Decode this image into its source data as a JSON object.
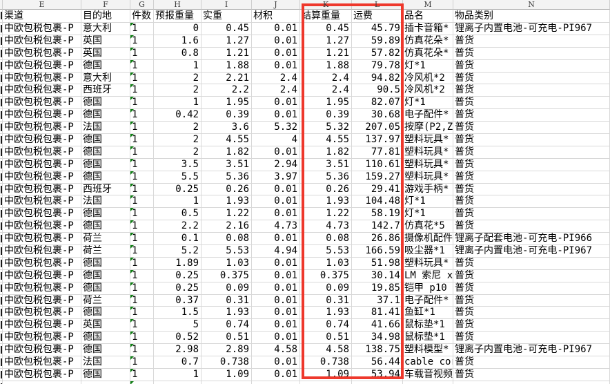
{
  "sheet": {
    "column_letters": [
      "E",
      "F",
      "G",
      "H",
      "I",
      "J",
      "K",
      "L",
      "M",
      "N"
    ],
    "headers": [
      "渠道",
      "目的地",
      "件数",
      "预报重量",
      "实重",
      "材积",
      "结算重量",
      "运费",
      "品名",
      "物品类别"
    ],
    "rows": [
      [
        "中欧包税包裹-P",
        "意大利",
        "1",
        "0",
        "0.45",
        "0.01",
        "0.45",
        "45.79",
        "插卡音箱*",
        "锂离子内置电池-可充电-PI967"
      ],
      [
        "中欧包税包裹-P",
        "英国",
        "1",
        "1.6",
        "1.27",
        "0.01",
        "1.27",
        "59.89",
        "仿真花朵*",
        "普货"
      ],
      [
        "中欧包税包裹-P",
        "英国",
        "1",
        "0.8",
        "1.21",
        "0.01",
        "1.21",
        "57.82",
        "仿真花朵*",
        "普货"
      ],
      [
        "中欧包税包裹-P",
        "德国",
        "1",
        "1",
        "1.88",
        "0.01",
        "1.88",
        "79.78",
        "灯*1",
        "普货"
      ],
      [
        "中欧包税包裹-P",
        "意大利",
        "1",
        "2",
        "2.21",
        "2.4",
        "2.4",
        "94.82",
        "冷风机*2",
        "普货"
      ],
      [
        "中欧包税包裹-P",
        "西班牙",
        "1",
        "2",
        "2.2",
        "2.4",
        "2.4",
        "90.5",
        "冷风机*2",
        "普货"
      ],
      [
        "中欧包税包裹-P",
        "德国",
        "1",
        "1",
        "1.95",
        "0.01",
        "1.95",
        "82.07",
        "灯*1",
        "普货"
      ],
      [
        "中欧包税包裹-P",
        "德国",
        "1",
        "0.42",
        "0.39",
        "0.01",
        "0.39",
        "30.68",
        "电子配件*",
        "普货"
      ],
      [
        "中欧包税包裹-P",
        "法国",
        "1",
        "2",
        "3.6",
        "5.32",
        "5.32",
        "207.05",
        "按摩(P2,Z",
        "普货"
      ],
      [
        "中欧包税包裹-P",
        "德国",
        "1",
        "2",
        "4.55",
        "4",
        "4.55",
        "137.97",
        "塑料玩具*",
        "普货"
      ],
      [
        "中欧包税包裹-P",
        "德国",
        "1",
        "2",
        "1.82",
        "0.01",
        "1.82",
        "77.81",
        "塑料玩具*",
        "普货"
      ],
      [
        "中欧包税包裹-P",
        "德国",
        "1",
        "3.5",
        "3.51",
        "2.94",
        "3.51",
        "110.61",
        "塑料玩具*",
        "普货"
      ],
      [
        "中欧包税包裹-P",
        "德国",
        "1",
        "5.5",
        "5.36",
        "3.97",
        "5.36",
        "159.27",
        "塑料玩具*",
        "普货"
      ],
      [
        "中欧包税包裹-P",
        "西班牙",
        "1",
        "0.25",
        "0.26",
        "0.01",
        "0.26",
        "29.41",
        "游戏手柄*",
        "普货"
      ],
      [
        "中欧包税包裹-P",
        "法国",
        "1",
        "1",
        "1.93",
        "0.01",
        "1.93",
        "104.48",
        "灯*1",
        "普货"
      ],
      [
        "中欧包税包裹-P",
        "德国",
        "1",
        "0.5",
        "1.22",
        "0.01",
        "1.22",
        "58.19",
        "灯*1",
        "普货"
      ],
      [
        "中欧包税包裹-P",
        "德国",
        "1",
        "2.2",
        "2.16",
        "4.73",
        "4.73",
        "142.7",
        "仿真花*5",
        "普货"
      ],
      [
        "中欧包税包裹-P",
        "荷兰",
        "1",
        "0.1",
        "0.08",
        "0.01",
        "0.08",
        "26.86",
        "摄像机配件",
        "锂离子配套电池-可充电-PI966"
      ],
      [
        "中欧包税包裹-P",
        "荷兰",
        "1",
        "5.2",
        "5.53",
        "4.94",
        "5.53",
        "166.59",
        "吸尘器*1",
        "锂离子内置电池-可充电-PI967"
      ],
      [
        "中欧包税包裹-P",
        "德国",
        "1",
        "1.89",
        "1.03",
        "0.01",
        "1.03",
        "51.98",
        "塑料玩具*",
        "普货"
      ],
      [
        "中欧包税包裹-P",
        "德国",
        "1",
        "0.25",
        "0.375",
        "0.01",
        "0.375",
        "30.14",
        "LM 索尼 x",
        "普货"
      ],
      [
        "中欧包税包裹-P",
        "德国",
        "1",
        "0.25",
        "0.09",
        "0.01",
        "0.09",
        "19.85",
        "铠甲 p10",
        "普货"
      ],
      [
        "中欧包税包裹-P",
        "荷兰",
        "1",
        "0.37",
        "0.31",
        "0.01",
        "0.31",
        "37.1",
        "电子配件*",
        "普货"
      ],
      [
        "中欧包税包裹-P",
        "德国",
        "1",
        "1.5",
        "1.93",
        "0.01",
        "1.93",
        "81.41",
        "鱼缸*1",
        "普货"
      ],
      [
        "中欧包税包裹-P",
        "英国",
        "1",
        "5",
        "0.74",
        "0.01",
        "0.74",
        "41.66",
        "鼠标垫*1",
        "普货"
      ],
      [
        "中欧包税包裹-P",
        "德国",
        "1",
        "0.52",
        "0.51",
        "0.01",
        "0.51",
        "34.98",
        "鼠标垫*1",
        "普货"
      ],
      [
        "中欧包税包裹-P",
        "德国",
        "1",
        "2.98",
        "2.89",
        "4.58",
        "4.58",
        "138.75",
        "塑料模型*",
        "锂离子内置电池-可充电-PI967"
      ],
      [
        "中欧包税包裹-P",
        "法国",
        "1",
        "0.7",
        "0.738",
        "0.01",
        "0.738",
        "56.44",
        "cable cor",
        "普货"
      ],
      [
        "中欧包税包裹-P",
        "德国",
        "1",
        "1",
        "1.09",
        "0.01",
        "1.09",
        "53.94",
        "车载音视频",
        "普货"
      ]
    ]
  },
  "annotation": {
    "highlighted_columns": [
      "结算重量",
      "运费"
    ],
    "color": "#ee382c"
  },
  "flags": {
    "error_indicator_color": "#0b7d10"
  }
}
